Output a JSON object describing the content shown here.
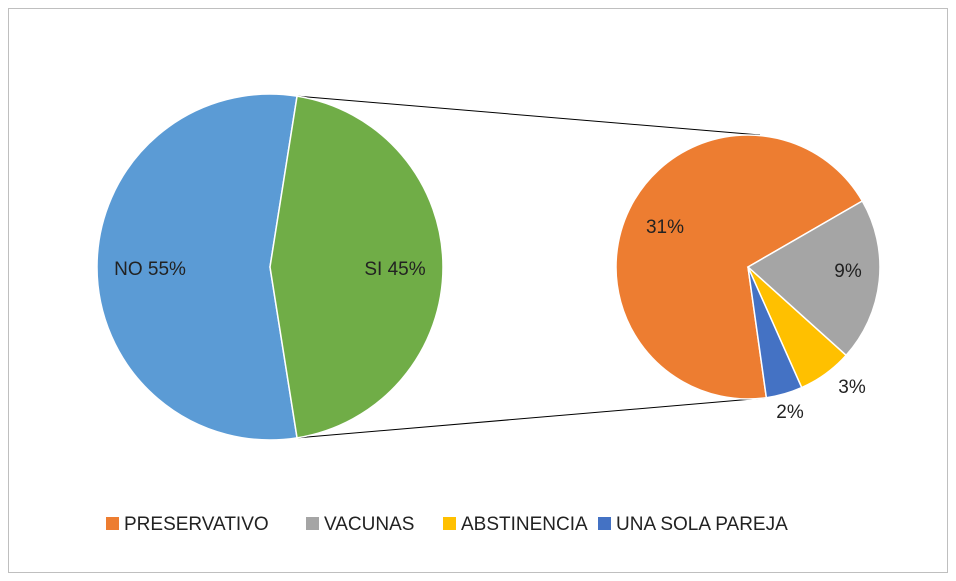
{
  "chart_data": {
    "type": "pie-of-pie",
    "categories": [
      "NO",
      "SI"
    ],
    "values": [
      55,
      45
    ],
    "value_labels": [
      "NO 55%",
      "SI 45%"
    ],
    "colors": [
      "#5b9bd5",
      "#70ad47"
    ],
    "secondary": {
      "categories": [
        "PRESERVATIVO",
        "VACUNAS",
        "ABSTINENCIA",
        "UNA SOLA PAREJA"
      ],
      "values": [
        31,
        9,
        3,
        2
      ],
      "value_labels": [
        "31%",
        "9%",
        "3%",
        "2%"
      ],
      "colors": [
        "#ed7d31",
        "#a5a5a5",
        "#ffc000",
        "#4472c4"
      ]
    },
    "legend": "bottom"
  }
}
